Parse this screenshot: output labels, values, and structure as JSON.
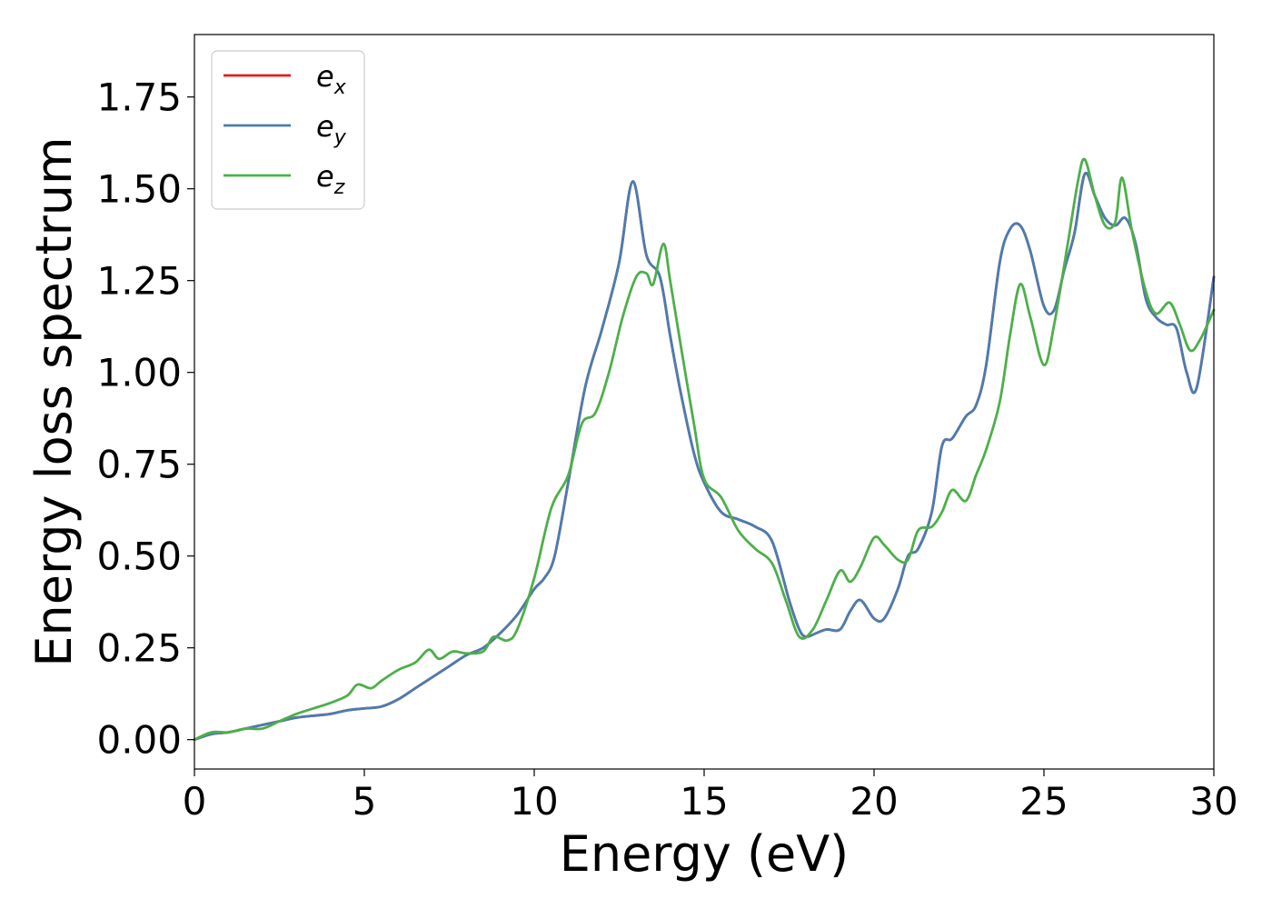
{
  "chart_data": {
    "type": "line",
    "title": "",
    "xlabel": "Energy (eV)",
    "ylabel": "Energy loss spectrum",
    "xlim": [
      0,
      30
    ],
    "ylim": [
      -0.08,
      1.92
    ],
    "xticks": [
      "0",
      "5",
      "10",
      "15",
      "20",
      "25",
      "30"
    ],
    "yticks": [
      "0.00",
      "0.25",
      "0.50",
      "0.75",
      "1.00",
      "1.25",
      "1.50",
      "1.75"
    ],
    "grid": false,
    "legend_position": "top-left",
    "series": [
      {
        "name": "e",
        "subscript": "x",
        "color": "#e41a1c",
        "x": [
          0,
          0.5,
          1,
          1.5,
          2,
          2.5,
          3,
          3.5,
          4,
          4.5,
          5,
          5.5,
          6,
          6.5,
          7,
          7.5,
          8,
          8.5,
          9,
          9.5,
          10,
          10.3,
          10.6,
          11,
          11.5,
          12,
          12.5,
          12.9,
          13.3,
          13.7,
          14,
          14.3,
          14.7,
          15,
          15.5,
          16,
          16.5,
          17,
          17.5,
          17.8,
          18,
          18.3,
          18.6,
          19,
          19.3,
          19.6,
          20,
          20.3,
          20.7,
          21,
          21.3,
          21.7,
          22,
          22.3,
          22.7,
          23,
          23.3,
          23.7,
          24,
          24.3,
          24.6,
          25,
          25.3,
          25.6,
          25.9,
          26.2,
          26.5,
          26.8,
          27.1,
          27.4,
          27.7,
          28,
          28.3,
          28.6,
          28.9,
          29.2,
          29.5,
          30
        ],
        "y": [
          0.0,
          0.015,
          0.02,
          0.03,
          0.04,
          0.05,
          0.06,
          0.065,
          0.07,
          0.08,
          0.085,
          0.09,
          0.11,
          0.14,
          0.17,
          0.2,
          0.23,
          0.25,
          0.29,
          0.34,
          0.41,
          0.44,
          0.5,
          0.7,
          0.96,
          1.12,
          1.3,
          1.52,
          1.32,
          1.26,
          1.1,
          0.95,
          0.78,
          0.7,
          0.62,
          0.6,
          0.58,
          0.54,
          0.38,
          0.3,
          0.28,
          0.29,
          0.3,
          0.3,
          0.35,
          0.38,
          0.33,
          0.33,
          0.41,
          0.5,
          0.52,
          0.62,
          0.8,
          0.82,
          0.88,
          0.91,
          1.02,
          1.3,
          1.39,
          1.4,
          1.33,
          1.18,
          1.17,
          1.28,
          1.38,
          1.54,
          1.48,
          1.42,
          1.4,
          1.42,
          1.35,
          1.2,
          1.15,
          1.13,
          1.12,
          1.0,
          0.96,
          1.26
        ]
      },
      {
        "name": "e",
        "subscript": "y",
        "color": "#4a7db0",
        "x": [
          0,
          0.5,
          1,
          1.5,
          2,
          2.5,
          3,
          3.5,
          4,
          4.5,
          5,
          5.5,
          6,
          6.5,
          7,
          7.5,
          8,
          8.5,
          9,
          9.5,
          10,
          10.3,
          10.6,
          11,
          11.5,
          12,
          12.5,
          12.9,
          13.3,
          13.7,
          14,
          14.3,
          14.7,
          15,
          15.5,
          16,
          16.5,
          17,
          17.5,
          17.8,
          18,
          18.3,
          18.6,
          19,
          19.3,
          19.6,
          20,
          20.3,
          20.7,
          21,
          21.3,
          21.7,
          22,
          22.3,
          22.7,
          23,
          23.3,
          23.7,
          24,
          24.3,
          24.6,
          25,
          25.3,
          25.6,
          25.9,
          26.2,
          26.5,
          26.8,
          27.1,
          27.4,
          27.7,
          28,
          28.3,
          28.6,
          28.9,
          29.2,
          29.5,
          30
        ],
        "y": [
          0.0,
          0.015,
          0.02,
          0.03,
          0.04,
          0.05,
          0.06,
          0.065,
          0.07,
          0.08,
          0.085,
          0.09,
          0.11,
          0.14,
          0.17,
          0.2,
          0.23,
          0.25,
          0.29,
          0.34,
          0.41,
          0.44,
          0.5,
          0.7,
          0.96,
          1.12,
          1.3,
          1.52,
          1.32,
          1.26,
          1.1,
          0.95,
          0.78,
          0.7,
          0.62,
          0.6,
          0.58,
          0.54,
          0.38,
          0.3,
          0.28,
          0.29,
          0.3,
          0.3,
          0.35,
          0.38,
          0.33,
          0.33,
          0.41,
          0.5,
          0.52,
          0.62,
          0.8,
          0.82,
          0.88,
          0.91,
          1.02,
          1.3,
          1.39,
          1.4,
          1.33,
          1.18,
          1.17,
          1.28,
          1.38,
          1.54,
          1.48,
          1.42,
          1.4,
          1.42,
          1.35,
          1.2,
          1.15,
          1.13,
          1.12,
          1.0,
          0.96,
          1.26
        ]
      },
      {
        "name": "e",
        "subscript": "z",
        "color": "#4daf4a",
        "x": [
          0,
          0.5,
          1,
          1.5,
          2,
          2.5,
          3,
          3.5,
          4,
          4.5,
          4.8,
          5.2,
          5.5,
          6,
          6.5,
          6.9,
          7.2,
          7.6,
          8,
          8.5,
          8.8,
          9.2,
          9.5,
          10,
          10.5,
          11,
          11.4,
          11.8,
          12.2,
          12.6,
          13,
          13.3,
          13.5,
          13.8,
          14,
          14.3,
          14.7,
          15,
          15.5,
          16,
          16.5,
          17,
          17.4,
          17.8,
          18.2,
          18.6,
          19,
          19.3,
          19.6,
          20,
          20.3,
          20.7,
          21,
          21.3,
          21.7,
          22,
          22.3,
          22.7,
          23,
          23.3,
          23.7,
          24,
          24.3,
          24.6,
          25,
          25.3,
          25.7,
          26,
          26.2,
          26.5,
          26.8,
          27.1,
          27.3,
          27.6,
          28,
          28.3,
          28.7,
          29,
          29.3,
          29.6,
          30
        ],
        "y": [
          0.0,
          0.02,
          0.02,
          0.03,
          0.03,
          0.05,
          0.07,
          0.085,
          0.1,
          0.12,
          0.15,
          0.14,
          0.16,
          0.19,
          0.21,
          0.245,
          0.22,
          0.24,
          0.235,
          0.24,
          0.28,
          0.27,
          0.3,
          0.44,
          0.63,
          0.72,
          0.86,
          0.89,
          1.0,
          1.15,
          1.26,
          1.27,
          1.24,
          1.35,
          1.25,
          1.08,
          0.86,
          0.71,
          0.66,
          0.57,
          0.52,
          0.48,
          0.38,
          0.28,
          0.3,
          0.38,
          0.46,
          0.43,
          0.47,
          0.55,
          0.53,
          0.49,
          0.49,
          0.57,
          0.58,
          0.62,
          0.68,
          0.65,
          0.72,
          0.79,
          0.92,
          1.1,
          1.24,
          1.15,
          1.02,
          1.13,
          1.35,
          1.52,
          1.58,
          1.48,
          1.4,
          1.41,
          1.53,
          1.38,
          1.22,
          1.16,
          1.19,
          1.13,
          1.06,
          1.09,
          1.17
        ]
      }
    ]
  }
}
